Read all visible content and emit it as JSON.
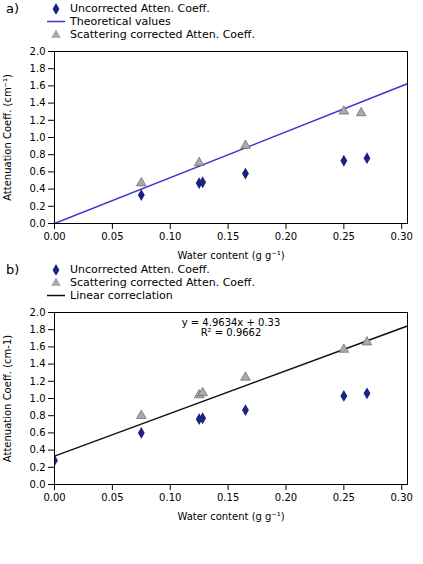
{
  "chart_data": [
    {
      "type": "scatter",
      "title": "a)",
      "x_label": "Water content (g g⁻¹)",
      "y_label": "Attenuation Coeff. (cm⁻¹)",
      "xlim": [
        0.0,
        0.305
      ],
      "ylim": [
        0,
        2.0
      ],
      "xticks": [
        {
          "value": 0,
          "label": "0.00"
        },
        0.05,
        {
          "value": 0.1,
          "label": "0.10"
        },
        0.15,
        {
          "value": 0.2,
          "label": "0.20"
        },
        0.25,
        {
          "value": 0.3,
          "label": "0.30"
        }
      ],
      "yticks": [
        {
          "value": 0,
          "label": "0.0"
        },
        0.2,
        0.4,
        0.6,
        0.8,
        {
          "value": 1,
          "label": "1.0"
        },
        1.2,
        1.4,
        1.6,
        1.8,
        {
          "value": 2,
          "label": "2.0"
        }
      ],
      "grid": false,
      "legend": "upper left",
      "series": [
        {
          "name": "Uncorrected Atten. Coeff.",
          "type": "scatter",
          "marker": "diamond",
          "color": "#1a237e",
          "x": [
            0.075,
            0.125,
            0.128,
            0.165,
            0.25,
            0.27
          ],
          "values": [
            0.33,
            0.47,
            0.48,
            0.58,
            0.73,
            0.76
          ],
          "yerr": [
            0.025,
            0.012,
            0.012,
            0.02,
            0.02,
            0.018
          ]
        },
        {
          "name": "Theoretical values",
          "type": "line",
          "color": "#3a3acc",
          "x": [
            0.0,
            0.305
          ],
          "values": [
            0,
            1.62565
          ]
        },
        {
          "name": "Scattering corrected Atten. Coeff.",
          "type": "scatter",
          "marker": "triangle",
          "color": "#aaaaaa",
          "x": [
            0.075,
            0.125,
            0.165,
            0.25,
            0.265
          ],
          "values": [
            0.47,
            0.705,
            0.905,
            1.305,
            1.285
          ],
          "yerr": [
            0.04,
            0.022,
            0.025,
            0.022,
            0.022
          ]
        }
      ]
    },
    {
      "type": "scatter",
      "title": "b)",
      "x_label": "Water content (g g⁻¹)",
      "y_label": "Attenuation Coeff. (cm-1)",
      "xlim": [
        0.0,
        0.305
      ],
      "ylim": [
        0,
        2.0
      ],
      "xticks": [
        {
          "value": 0,
          "label": "0.00"
        },
        0.05,
        {
          "value": 0.1,
          "label": "0.10"
        },
        0.15,
        {
          "value": 0.2,
          "label": "0.20"
        },
        0.25,
        {
          "value": 0.3,
          "label": "0.30"
        }
      ],
      "yticks": [
        {
          "value": 0,
          "label": "0.0"
        },
        0.2,
        0.4,
        0.6,
        0.8,
        {
          "value": 1,
          "label": "1.0"
        },
        1.2,
        1.4,
        1.6,
        1.8,
        {
          "value": 2,
          "label": "2.0"
        }
      ],
      "grid": false,
      "legend": "upper left",
      "annotations": [
        "y = 4.9634x + 0.33",
        "R² = 0.9662"
      ],
      "series": [
        {
          "name": "Uncorrected Atten. Coeff.",
          "type": "scatter",
          "marker": "diamond",
          "color": "#1a237e",
          "x": [
            0.0,
            0.075,
            0.125,
            0.128,
            0.165,
            0.25,
            0.27
          ],
          "values": [
            0.28,
            0.6,
            0.76,
            0.77,
            0.865,
            1.03,
            1.06
          ],
          "yerr": [
            0.018,
            0.018,
            0.018,
            0.018,
            0.018,
            0.018,
            0.018
          ]
        },
        {
          "name": "Scattering corrected Atten. Coeff.",
          "type": "scatter",
          "marker": "triangle",
          "color": "#aaaaaa",
          "x": [
            0.075,
            0.125,
            0.128,
            0.165,
            0.25,
            0.27
          ],
          "values": [
            0.8,
            1.04,
            1.065,
            1.245,
            1.57,
            1.655
          ],
          "yerr": [
            0.03,
            0.022,
            0.022,
            0.028,
            0.028,
            0.028
          ]
        },
        {
          "name": "Linear correclation",
          "type": "line",
          "color": "#111111",
          "x": [
            0.0,
            0.305
          ],
          "values": [
            0.33,
            1.843837
          ]
        }
      ]
    }
  ]
}
